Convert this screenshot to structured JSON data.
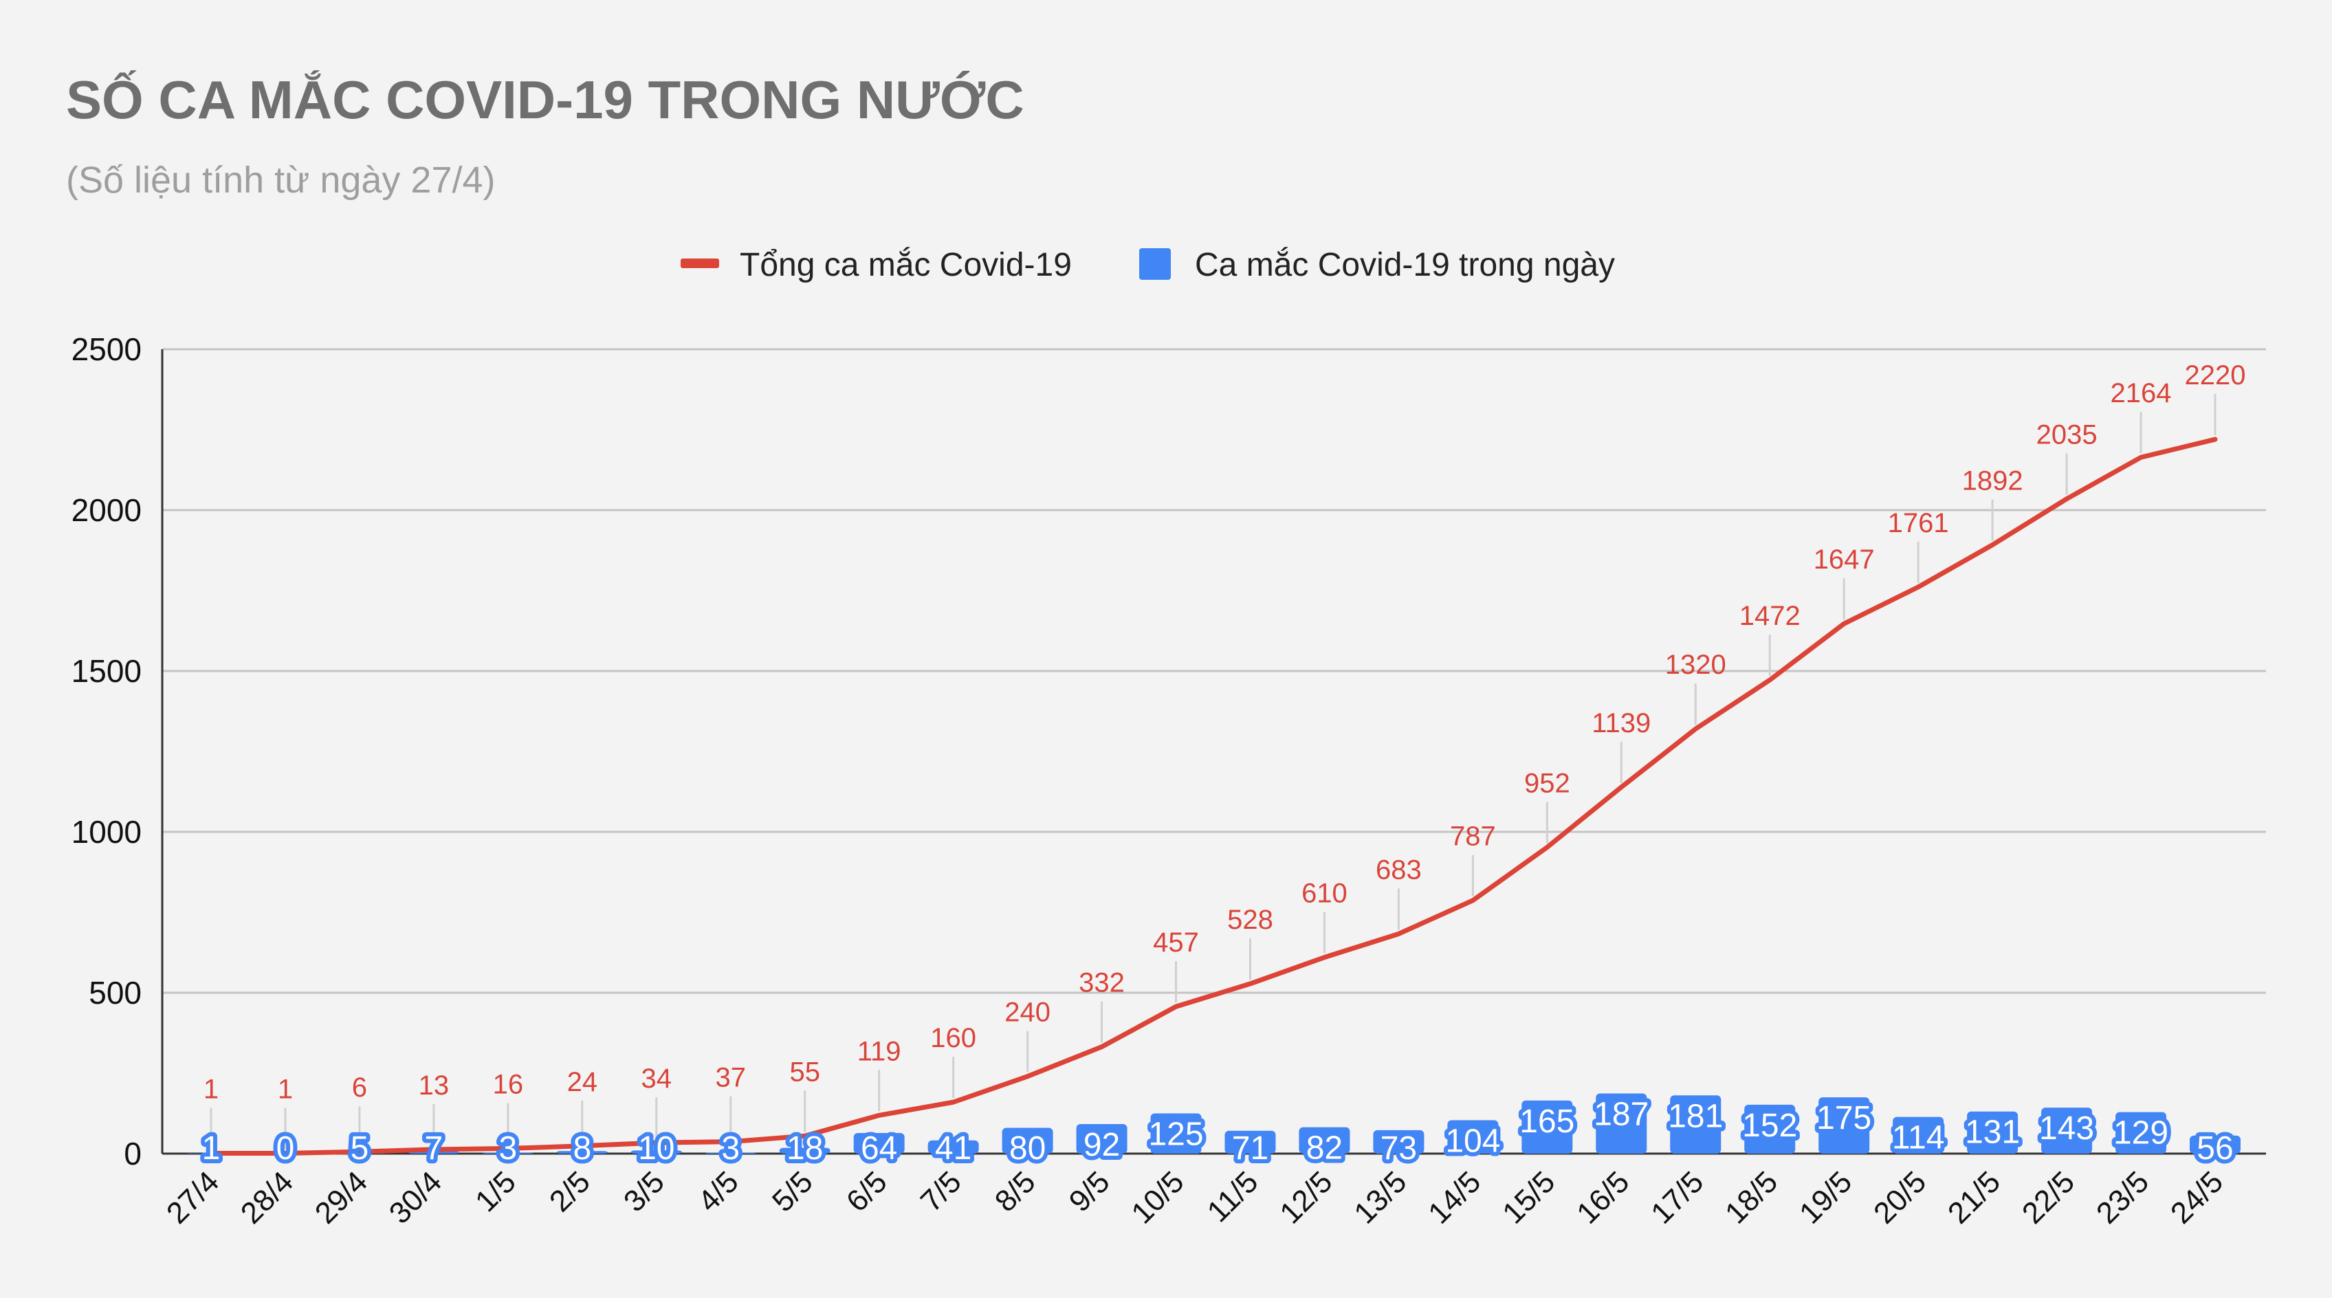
{
  "chart_data": {
    "type": "bar+line",
    "title": "SỐ CA MẮC COVID-19 TRONG NƯỚC",
    "subtitle": "(Số liệu tính từ ngày 27/4)",
    "xlabel": "",
    "ylabel": "",
    "ylim": [
      0,
      2500
    ],
    "yticks": [
      0,
      500,
      1000,
      1500,
      2000,
      2500
    ],
    "grid": true,
    "legend_position": "top-center",
    "categories": [
      "27/4",
      "28/4",
      "29/4",
      "30/4",
      "1/5",
      "2/5",
      "3/5",
      "4/5",
      "5/5",
      "6/5",
      "7/5",
      "8/5",
      "9/5",
      "10/5",
      "11/5",
      "12/5",
      "13/5",
      "14/5",
      "15/5",
      "16/5",
      "17/5",
      "18/5",
      "19/5",
      "20/5",
      "21/5",
      "22/5",
      "23/5",
      "24/5"
    ],
    "series": [
      {
        "name": "Tổng ca mắc Covid-19",
        "type": "line",
        "color": "#db4437",
        "values": [
          1,
          1,
          6,
          13,
          16,
          24,
          34,
          37,
          55,
          119,
          160,
          240,
          332,
          457,
          528,
          610,
          683,
          787,
          952,
          1139,
          1320,
          1472,
          1647,
          1761,
          1892,
          2035,
          2164,
          2220
        ]
      },
      {
        "name": "Ca mắc Covid-19 trong ngày",
        "type": "bar",
        "color": "#4285f4",
        "values": [
          1,
          0,
          5,
          7,
          3,
          8,
          10,
          3,
          18,
          64,
          41,
          80,
          92,
          125,
          71,
          82,
          73,
          104,
          165,
          187,
          181,
          152,
          175,
          114,
          131,
          143,
          129,
          56
        ]
      }
    ]
  }
}
